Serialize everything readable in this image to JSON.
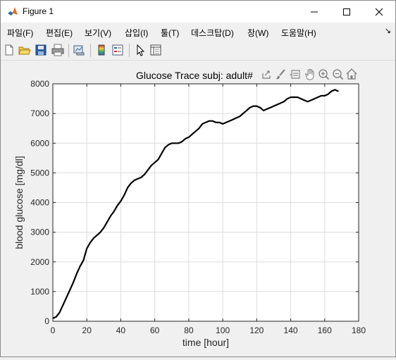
{
  "window": {
    "title": "Figure 1"
  },
  "menu": [
    {
      "label": "파일(F)"
    },
    {
      "label": "편집(E)"
    },
    {
      "label": "보기(V)"
    },
    {
      "label": "삽입(I)"
    },
    {
      "label": "툴(T)"
    },
    {
      "label": "데스크탑(D)"
    },
    {
      "label": "창(W)"
    },
    {
      "label": "도움말(H)"
    }
  ],
  "menu_overflow": "↘",
  "toolbar_icons": [
    "new-figure-icon",
    "open-file-icon",
    "save-icon",
    "print-icon",
    "link-plot-icon",
    "insert-colorbar-icon",
    "insert-legend-icon",
    "edit-plot-icon",
    "property-inspector-icon"
  ],
  "axes_toolbar_icons": [
    "export-icon",
    "brush-icon",
    "data-tips-icon",
    "pan-icon",
    "zoom-in-icon",
    "zoom-out-icon",
    "restore-view-icon"
  ],
  "chart_data": {
    "type": "line",
    "title": "Glucose Trace subj: adult#",
    "xlabel": "time [hour]",
    "ylabel": "blood glucose [mg/dl]",
    "xlim": [
      0,
      180
    ],
    "ylim": [
      0,
      8000
    ],
    "xticks": [
      0,
      20,
      40,
      60,
      80,
      100,
      120,
      140,
      160,
      180
    ],
    "yticks": [
      0,
      1000,
      2000,
      3000,
      4000,
      5000,
      6000,
      7000,
      8000
    ],
    "grid": true,
    "line_color": "#000000",
    "series": [
      {
        "x": [
          0,
          2,
          4,
          6,
          8,
          10,
          12,
          14,
          16,
          18,
          20,
          22,
          24,
          26,
          28,
          30,
          32,
          34,
          36,
          38,
          40,
          42,
          44,
          46,
          48,
          50,
          52,
          54,
          56,
          58,
          60,
          62,
          64,
          66,
          68,
          70,
          72,
          74,
          76,
          78,
          80,
          82,
          84,
          86,
          88,
          90,
          92,
          94,
          96,
          98,
          100,
          102,
          104,
          106,
          108,
          110,
          112,
          114,
          116,
          118,
          120,
          122,
          124,
          126,
          128,
          130,
          132,
          134,
          136,
          138,
          140,
          142,
          144,
          146,
          148,
          150,
          152,
          154,
          156,
          158,
          160,
          162,
          164,
          166,
          168
        ],
        "y": [
          100,
          150,
          300,
          550,
          800,
          1050,
          1300,
          1600,
          1850,
          2050,
          2450,
          2650,
          2800,
          2900,
          3000,
          3150,
          3350,
          3550,
          3700,
          3900,
          4050,
          4250,
          4500,
          4650,
          4750,
          4800,
          4850,
          4950,
          5100,
          5250,
          5350,
          5450,
          5650,
          5850,
          5950,
          6000,
          6000,
          6000,
          6050,
          6150,
          6200,
          6300,
          6400,
          6500,
          6650,
          6700,
          6750,
          6750,
          6700,
          6700,
          6650,
          6700,
          6750,
          6800,
          6850,
          6900,
          7000,
          7100,
          7200,
          7250,
          7250,
          7200,
          7100,
          7150,
          7200,
          7250,
          7300,
          7350,
          7400,
          7500,
          7550,
          7550,
          7550,
          7500,
          7450,
          7400,
          7450,
          7500,
          7550,
          7600,
          7600,
          7650,
          7750,
          7800,
          7750
        ]
      }
    ]
  }
}
